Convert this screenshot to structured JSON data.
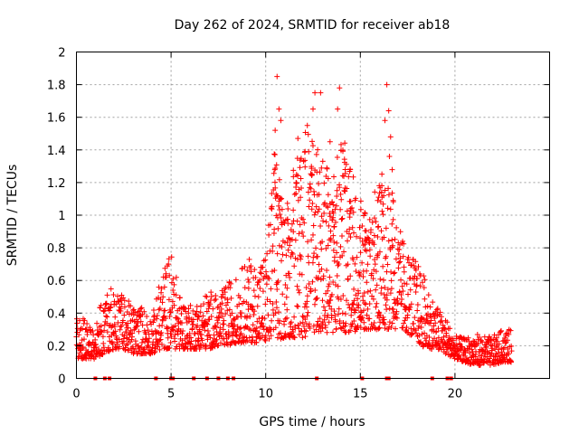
{
  "chart_data": {
    "type": "scatter",
    "title": "Day 262 of 2024, SRMTID for receiver ab18",
    "xlabel": "GPS time / hours",
    "ylabel": "SRMTID / TECUs",
    "xlim": [
      0,
      25
    ],
    "ylim": [
      0,
      2
    ],
    "xticks": [
      0,
      5,
      10,
      15,
      20
    ],
    "yticks": [
      0,
      0.2,
      0.4,
      0.6,
      0.8,
      1,
      1.2,
      1.4,
      1.6,
      1.8,
      2
    ],
    "xtick_labels": [
      "0",
      "5",
      "10",
      "15",
      "20"
    ],
    "ytick_labels": [
      "0",
      "0.2",
      "0.4",
      "0.6",
      "0.8",
      "1",
      "1.2",
      "1.4",
      "1.6",
      "1.8",
      "2"
    ],
    "grid": true,
    "marker": "plus",
    "color": "#ff0000",
    "series": [
      {
        "name": "SRMTID",
        "envelope": {
          "x": [
            0,
            0.5,
            1,
            1.5,
            2,
            2.5,
            3,
            3.5,
            4,
            4.5,
            5,
            5.5,
            6,
            6.5,
            7,
            7.5,
            8,
            8.5,
            9,
            9.5,
            10,
            10.5,
            11,
            11.5,
            12,
            12.5,
            13,
            13.5,
            14,
            14.5,
            15,
            15.5,
            16,
            16.5,
            17,
            17.5,
            18,
            18.5,
            19,
            19.5,
            20,
            20.5,
            21,
            21.5,
            22,
            22.5,
            23
          ],
          "low": [
            0.12,
            0.12,
            0.12,
            0.15,
            0.18,
            0.18,
            0.15,
            0.15,
            0.15,
            0.18,
            0.18,
            0.18,
            0.18,
            0.18,
            0.18,
            0.2,
            0.2,
            0.22,
            0.22,
            0.22,
            0.22,
            0.22,
            0.25,
            0.25,
            0.25,
            0.28,
            0.28,
            0.28,
            0.28,
            0.28,
            0.3,
            0.3,
            0.3,
            0.3,
            0.3,
            0.28,
            0.22,
            0.18,
            0.18,
            0.15,
            0.12,
            0.1,
            0.08,
            0.08,
            0.08,
            0.1,
            0.1
          ],
          "high": [
            0.4,
            0.36,
            0.35,
            0.55,
            0.58,
            0.5,
            0.45,
            0.45,
            0.38,
            0.65,
            0.8,
            0.5,
            0.45,
            0.48,
            0.55,
            0.5,
            0.6,
            0.62,
            0.75,
            0.7,
            0.8,
            1.35,
            1.0,
            1.2,
            1.45,
            1.4,
            1.3,
            1.1,
            1.45,
            1.2,
            1.0,
            0.95,
            1.15,
            1.4,
            0.95,
            0.8,
            0.72,
            0.6,
            0.45,
            0.38,
            0.26,
            0.25,
            0.28,
            0.26,
            0.26,
            0.3,
            0.3
          ]
        },
        "outliers": [
          [
            10.6,
            1.85
          ],
          [
            10.7,
            1.65
          ],
          [
            10.8,
            1.58
          ],
          [
            12.6,
            1.75
          ],
          [
            12.5,
            1.65
          ],
          [
            12.9,
            1.75
          ],
          [
            13.9,
            1.78
          ],
          [
            13.8,
            1.65
          ],
          [
            16.4,
            1.8
          ],
          [
            16.5,
            1.64
          ],
          [
            16.3,
            1.58
          ],
          [
            12.2,
            1.55
          ],
          [
            11.7,
            1.47
          ],
          [
            13.4,
            1.45
          ],
          [
            10.5,
            1.52
          ],
          [
            14.2,
            1.28
          ],
          [
            16.6,
            1.48
          ]
        ],
        "zero_markers": [
          1.0,
          1.5,
          1.75,
          4.2,
          5.0,
          5.1,
          6.2,
          6.9,
          7.5,
          8.0,
          8.3,
          12.7,
          15.1,
          16.4,
          16.5,
          18.8,
          19.6,
          19.8
        ]
      }
    ]
  }
}
